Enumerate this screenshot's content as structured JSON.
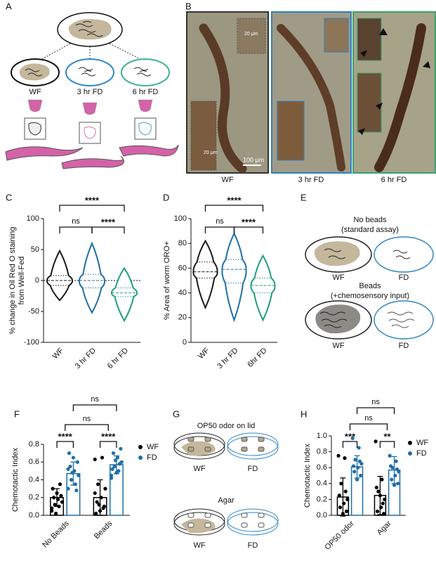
{
  "panel_letters": [
    "A",
    "B",
    "C",
    "D",
    "E",
    "F",
    "G",
    "H"
  ],
  "panel_a": {
    "groups": [
      "WF",
      "3 hr FD",
      "6 hr FD"
    ]
  },
  "panel_b": {
    "scale_inset_1": "20 μm",
    "scale_inset_2": "20 μm",
    "scale_main": "100 μm",
    "groups": [
      "WF",
      "3 hr FD",
      "6 hr FD"
    ]
  },
  "panel_e": {
    "top_title": [
      "No beads",
      "(standard assay)"
    ],
    "top_groups": [
      "WF",
      "FD"
    ],
    "bottom_title": [
      "Beads",
      "(+chemosensory input)"
    ],
    "bottom_groups": [
      "WF",
      "FD"
    ]
  },
  "panel_g": {
    "top_title": "OP50 odor on lid",
    "top_groups": [
      "WF",
      "FD"
    ],
    "bottom_title": "Agar",
    "bottom_groups": [
      "WF",
      "FD"
    ]
  },
  "chart_data": [
    {
      "type": "violin",
      "ylabel": [
        "% change in Oil Red O staining",
        "from Well-Fed"
      ],
      "categories": [
        "WF",
        "3 hr FD",
        "6 hr FD"
      ],
      "colors": [
        "#1a1a1a",
        "#1f6fa8",
        "#20a07a"
      ],
      "min": [
        -32,
        -52,
        -65
      ],
      "q1": [
        -8,
        -12,
        -26
      ],
      "median": [
        0,
        0,
        -20
      ],
      "q3": [
        8,
        10,
        -12
      ],
      "max": [
        48,
        60,
        20
      ],
      "ylim": [
        -100,
        100
      ],
      "yticks": [
        -100,
        -50,
        0,
        50,
        100
      ],
      "zero_line": true,
      "annotations": [
        "****",
        "ns",
        "****"
      ]
    },
    {
      "type": "violin",
      "ylabel": [
        "% Area of worm ORO+"
      ],
      "categories": [
        "WF",
        "3 hr FD",
        "6hr FD"
      ],
      "colors": [
        "#1a1a1a",
        "#1f6fa8",
        "#20a07a"
      ],
      "min": [
        28,
        18,
        18
      ],
      "q1": [
        52,
        48,
        40
      ],
      "median": [
        57,
        59,
        46
      ],
      "q3": [
        65,
        67,
        52
      ],
      "max": [
        82,
        88,
        70
      ],
      "ylim": [
        0,
        100
      ],
      "yticks": [
        0,
        20,
        40,
        60,
        80,
        100
      ],
      "zero_line": false,
      "annotations": [
        "****",
        "ns",
        "****"
      ]
    },
    {
      "type": "grouped_bar",
      "ylabel": [
        "Chemotactic Index"
      ],
      "categories": [
        "No Beads",
        "Beads"
      ],
      "ylim": [
        0,
        0.8
      ],
      "yticks": [
        {
          "value": 0,
          "label": "0.0"
        },
        0.2,
        0.4,
        0.6,
        0.8
      ],
      "series": [
        {
          "name": "WF",
          "color": "#000000",
          "values": [
            0.2,
            0.2
          ],
          "errors": [
            0.1,
            0.2
          ],
          "points": [
            [
              0.05,
              0.1,
              0.12,
              0.15,
              0.18,
              0.2,
              0.22,
              0.25,
              0.3,
              0.35,
              0.02,
              0.08
            ],
            [
              0.63,
              0.65,
              0.35,
              0.3,
              0.2,
              0.15,
              0.1,
              0.05,
              0.02,
              0.08,
              0.12,
              0.25
            ]
          ]
        },
        {
          "name": "FD",
          "color": "#1f6fa8",
          "values": [
            0.47,
            0.57
          ],
          "errors": [
            0.13,
            0.1
          ],
          "points": [
            [
              0.3,
              0.35,
              0.4,
              0.45,
              0.5,
              0.55,
              0.6,
              0.65,
              0.7,
              0.28,
              0.48,
              0.52
            ],
            [
              0.45,
              0.5,
              0.55,
              0.6,
              0.65,
              0.7,
              0.75,
              0.48,
              0.52,
              0.58,
              0.62,
              0.42
            ]
          ]
        }
      ],
      "annotations": [
        "****",
        "****",
        "ns",
        "ns"
      ]
    },
    {
      "type": "grouped_bar",
      "ylabel": [
        "Chemotactic Index"
      ],
      "categories": [
        "OP50 odor",
        "Agar"
      ],
      "ylim": [
        0,
        1.0
      ],
      "yticks": [
        {
          "value": 0,
          "label": "0.0"
        },
        0.2,
        0.4,
        0.6,
        0.8,
        {
          "value": 1.0,
          "label": "1.0"
        }
      ],
      "series": [
        {
          "name": "WF",
          "color": "#000000",
          "values": [
            0.23,
            0.25
          ],
          "errors": [
            0.24,
            0.24
          ],
          "points": [
            [
              0.75,
              0.72,
              0.4,
              0.2,
              0.15,
              0.1,
              0.05,
              0.02,
              0.25,
              0.3
            ],
            [
              0.93,
              0.45,
              0.3,
              0.2,
              0.1,
              0.05,
              0.02,
              0.25,
              0.35,
              0.15
            ]
          ]
        },
        {
          "name": "FD",
          "color": "#1f6fa8",
          "values": [
            0.61,
            0.57
          ],
          "errors": [
            0.14,
            0.17
          ],
          "points": [
            [
              0.97,
              0.85,
              0.7,
              0.65,
              0.6,
              0.55,
              0.5,
              0.45,
              0.62,
              0.68
            ],
            [
              0.75,
              0.68,
              0.6,
              0.55,
              0.5,
              0.45,
              0.4,
              0.38,
              0.62,
              0.58
            ]
          ]
        }
      ],
      "annotations": [
        "***",
        "**",
        "ns",
        "ns"
      ]
    }
  ]
}
